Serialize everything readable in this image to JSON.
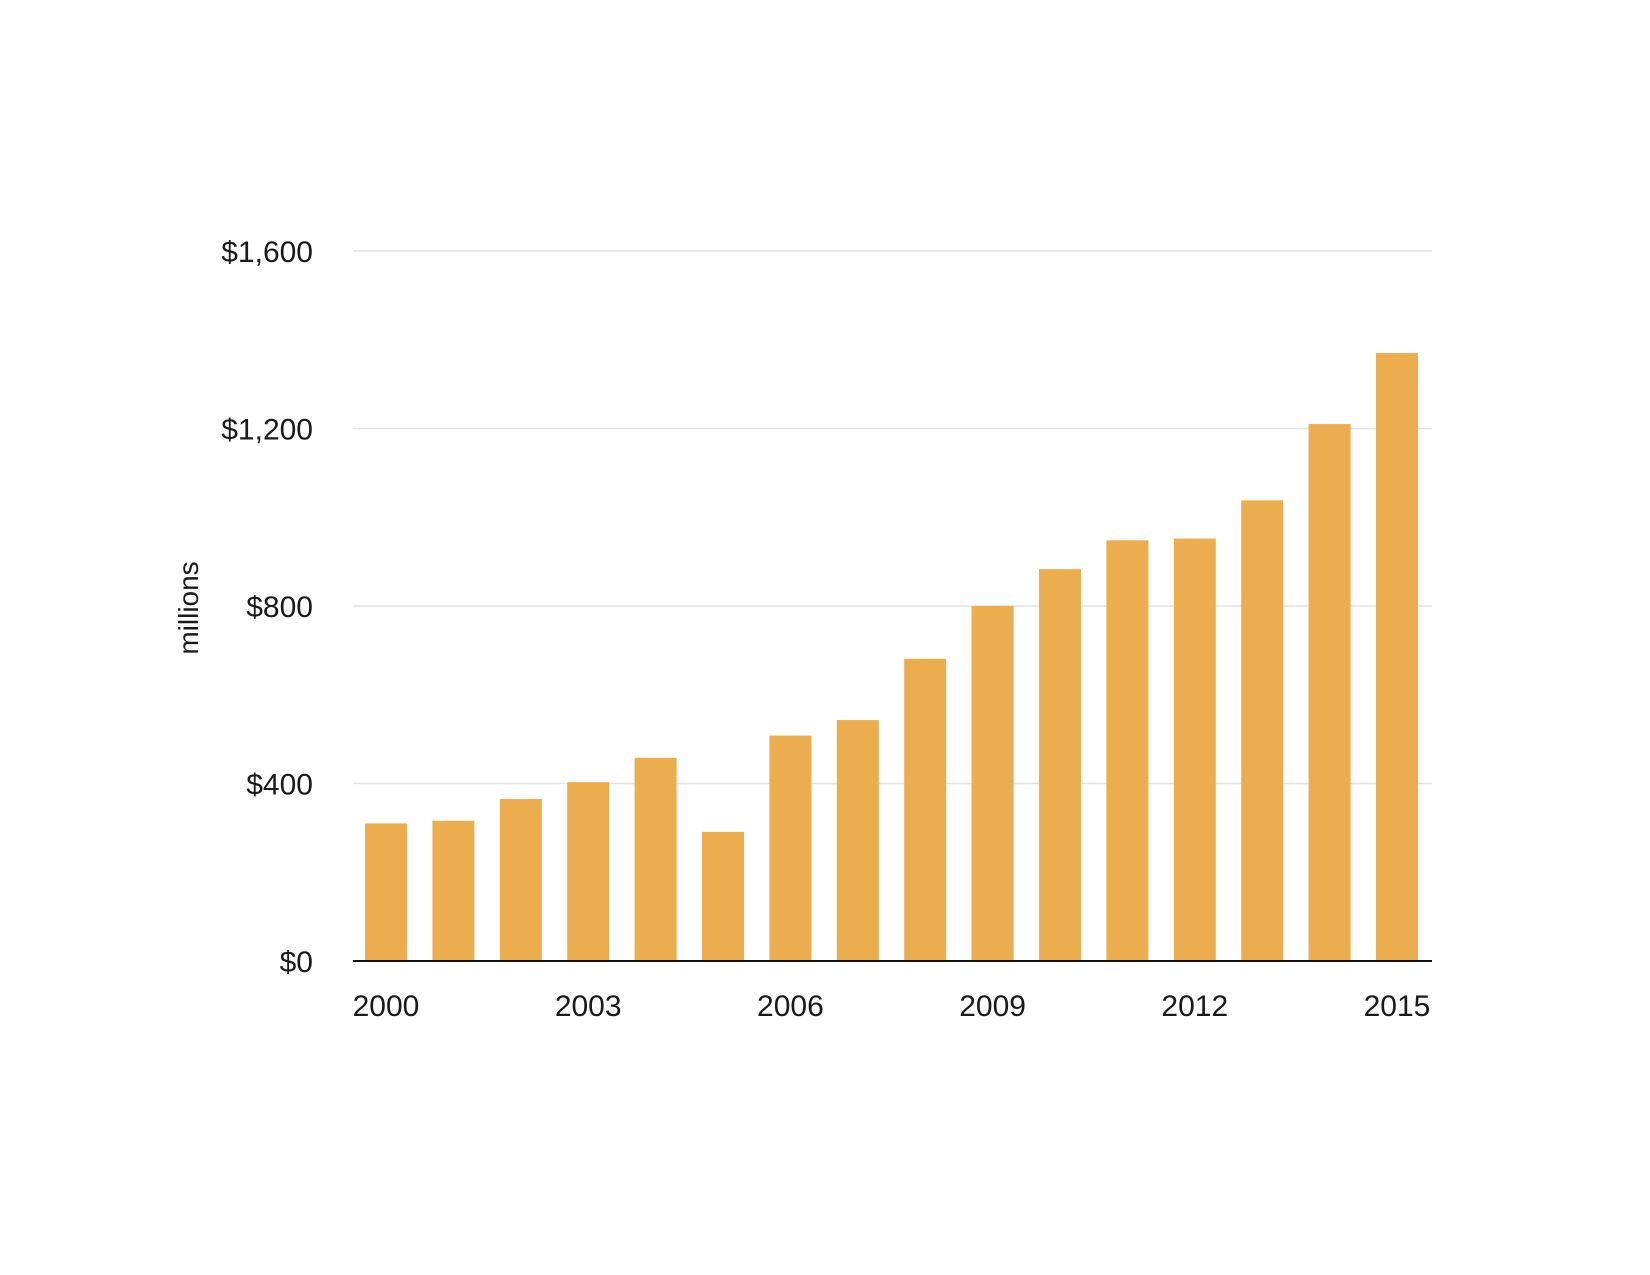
{
  "chart_data": {
    "type": "bar",
    "title": "",
    "xlabel": "",
    "ylabel": "millions",
    "categories": [
      "2000",
      "2001",
      "2002",
      "2003",
      "2004",
      "2005",
      "2006",
      "2007",
      "2008",
      "2009",
      "2010",
      "2011",
      "2012",
      "2013",
      "2014",
      "2015"
    ],
    "values": [
      310,
      316,
      365,
      403,
      458,
      291,
      508,
      543,
      681,
      800,
      883,
      948,
      952,
      1038,
      1210,
      1370
    ],
    "ylim": [
      0,
      1600
    ],
    "yticks": [
      0,
      400,
      800,
      1200,
      1600
    ],
    "ytick_labels": [
      "$0",
      "$400",
      "$800",
      "$1,200",
      "$1,600"
    ],
    "xtick_labels": [
      "2000",
      "2003",
      "2006",
      "2009",
      "2012",
      "2015"
    ],
    "grid": true,
    "legend": "none",
    "colors": {
      "bar": "#ebad4e",
      "grid": "#e2e2e2",
      "axis": "#111111"
    }
  }
}
